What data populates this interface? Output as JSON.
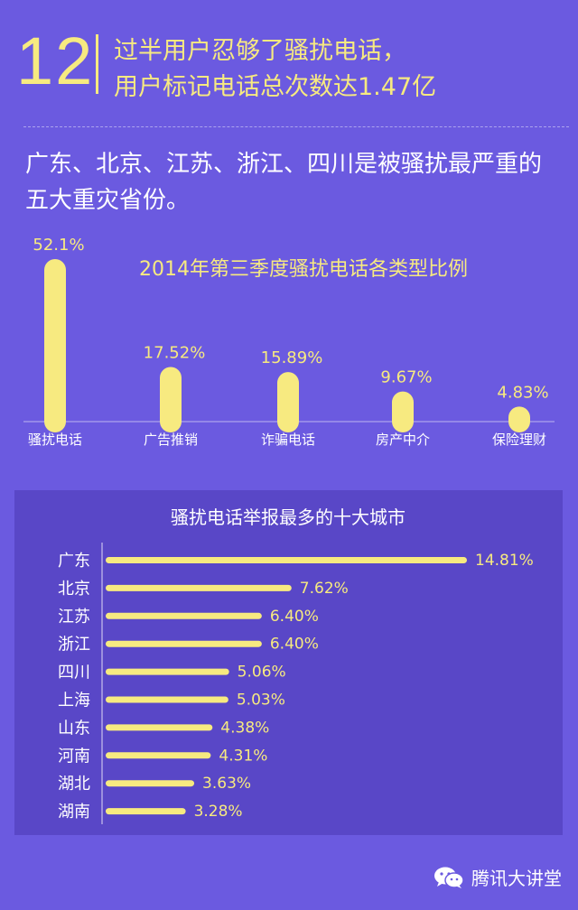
{
  "header": {
    "number": "12",
    "line1": "过半用户忍够了骚扰电话，",
    "line2": "用户标记电话总次数达1.47亿"
  },
  "intro": "广东、北京、江苏、浙江、四川是被骚扰最严重的五大重灾省份。",
  "footer": {
    "brand": "腾讯大讲堂",
    "icon": "wechat-icon"
  },
  "colors": {
    "background": "#6b5ae0",
    "panel": "#5947c7",
    "accent": "#f7ea80"
  },
  "chart_data": [
    {
      "type": "bar",
      "title": "2014年第三季度骚扰电话各类型比例",
      "categories": [
        "骚扰电话",
        "广告推销",
        "诈骗电话",
        "房产中介",
        "保险理财"
      ],
      "values": [
        52.1,
        17.52,
        15.89,
        9.67,
        4.83
      ],
      "data_labels": [
        "52.1%",
        "17.52%",
        "15.89%",
        "9.67%",
        "4.83%"
      ],
      "unit": "%",
      "ylim": [
        0,
        55
      ],
      "orientation": "vertical",
      "grid": false
    },
    {
      "type": "bar",
      "title": "骚扰电话举报最多的十大城市",
      "categories": [
        "广东",
        "北京",
        "江苏",
        "浙江",
        "四川",
        "上海",
        "山东",
        "河南",
        "湖北",
        "湖南"
      ],
      "values": [
        14.81,
        7.62,
        6.4,
        6.4,
        5.06,
        5.03,
        4.38,
        4.31,
        3.63,
        3.28
      ],
      "data_labels": [
        "14.81%",
        "7.62%",
        "6.40%",
        "6.40%",
        "5.06%",
        "5.03%",
        "4.38%",
        "4.31%",
        "3.63%",
        "3.28%"
      ],
      "unit": "%",
      "xlim": [
        0,
        15
      ],
      "orientation": "horizontal",
      "grid": false
    }
  ]
}
